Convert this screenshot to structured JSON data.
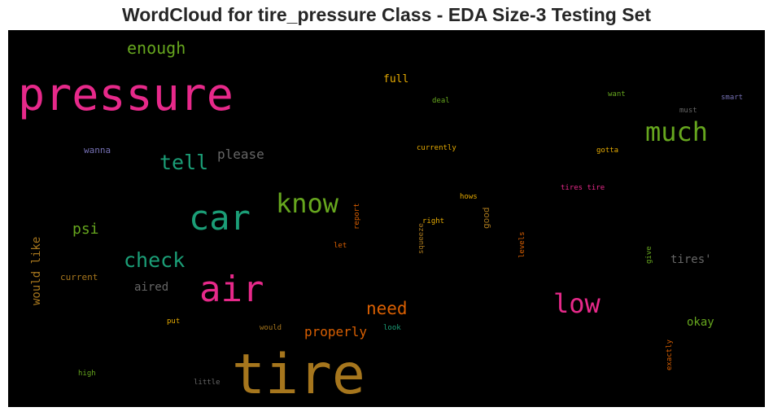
{
  "chart_data": {
    "type": "wordcloud",
    "title": "WordCloud for tire_pressure Class - EDA Size-3 Testing Set",
    "background": "#000000",
    "words": [
      {
        "text": "pressure",
        "color": "#e7298a"
      },
      {
        "text": "tire",
        "color": "#a6761d"
      },
      {
        "text": "car",
        "color": "#1b9e77"
      },
      {
        "text": "air",
        "color": "#e7298a"
      },
      {
        "text": "know",
        "color": "#66a61e"
      },
      {
        "text": "much",
        "color": "#66a61e"
      },
      {
        "text": "low",
        "color": "#e7298a"
      },
      {
        "text": "check",
        "color": "#1b9e77"
      },
      {
        "text": "tell",
        "color": "#1b9e77"
      },
      {
        "text": "need",
        "color": "#d95f02"
      },
      {
        "text": "enough",
        "color": "#66a61e"
      },
      {
        "text": "please",
        "color": "#666666"
      },
      {
        "text": "psi",
        "color": "#66a61e"
      },
      {
        "text": "properly",
        "color": "#d95f02"
      },
      {
        "text": "would like",
        "color": "#a6761d"
      },
      {
        "text": "tires'",
        "color": "#666666"
      },
      {
        "text": "okay",
        "color": "#66a61e"
      },
      {
        "text": "aired",
        "color": "#666666"
      },
      {
        "text": "full",
        "color": "#e6ab02"
      },
      {
        "text": "current",
        "color": "#a6761d"
      },
      {
        "text": "wanna",
        "color": "#7570b3"
      },
      {
        "text": "deal",
        "color": "#66a61e"
      },
      {
        "text": "currently",
        "color": "#e6ab02"
      },
      {
        "text": "want",
        "color": "#66a61e"
      },
      {
        "text": "smart",
        "color": "#7570b3"
      },
      {
        "text": "must",
        "color": "#666666"
      },
      {
        "text": "gotta",
        "color": "#e6ab02"
      },
      {
        "text": "tires tire",
        "color": "#e7298a"
      },
      {
        "text": "hows",
        "color": "#e6ab02"
      },
      {
        "text": "right",
        "color": "#e6ab02"
      },
      {
        "text": "let",
        "color": "#d95f02"
      },
      {
        "text": "report",
        "color": "#d95f02"
      },
      {
        "text": "good",
        "color": "#a6761d"
      },
      {
        "text": "squeeze",
        "color": "#a6761d"
      },
      {
        "text": "levels",
        "color": "#d95f02"
      },
      {
        "text": "give",
        "color": "#66a61e"
      },
      {
        "text": "put",
        "color": "#e6ab02"
      },
      {
        "text": "would",
        "color": "#a6761d"
      },
      {
        "text": "look",
        "color": "#1b9e77"
      },
      {
        "text": "high",
        "color": "#66a61e"
      },
      {
        "text": "little",
        "color": "#666666"
      },
      {
        "text": "exactly",
        "color": "#d95f02"
      }
    ]
  }
}
